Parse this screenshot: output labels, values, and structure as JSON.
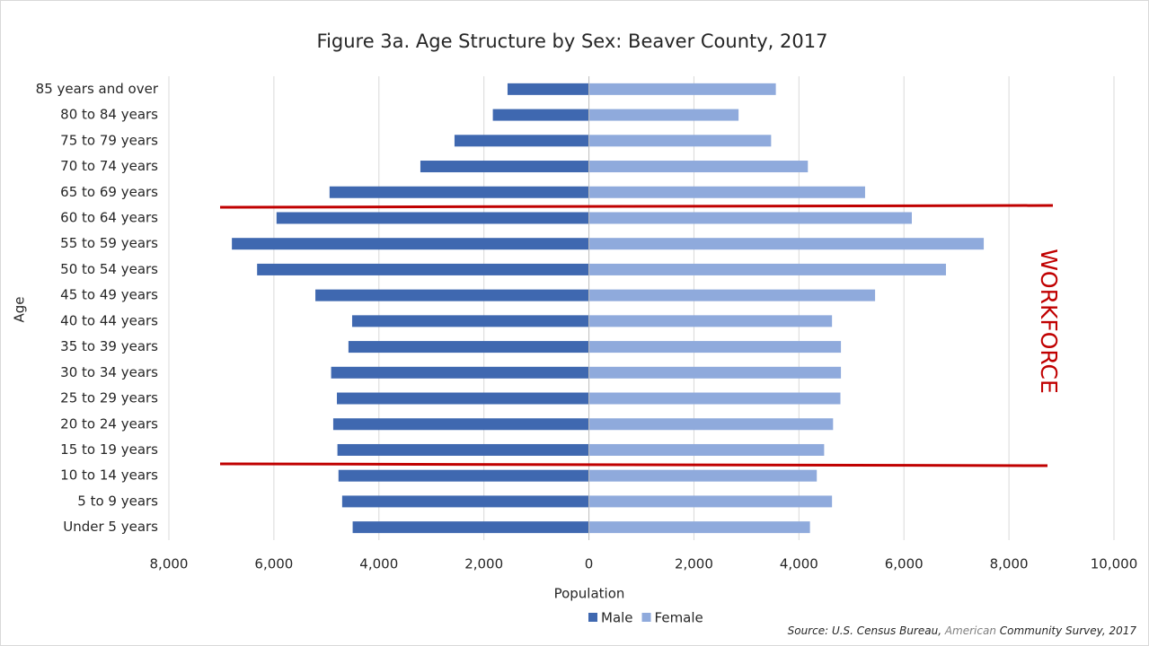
{
  "chart_data": {
    "type": "bar",
    "orientation": "horizontal",
    "title": "Figure 3a. Age Structure by Sex: Beaver County, 2017",
    "x_label": "Population",
    "y_label": "Age",
    "annotation": "WORKFORCE",
    "source": [
      "Source: U.S. Census Bureau, ",
      "American",
      " Community Survey, 2017"
    ],
    "categories": [
      "85 years and over",
      "80 to 84 years",
      "75 to 79 years",
      "70 to 74 years",
      "65 to 69 years",
      "60 to 64 years",
      "55 to 59 years",
      "50 to 54 years",
      "45 to 49 years",
      "40 to 44 years",
      "35 to 39 years",
      "30 to 34 years",
      "25 to 29 years",
      "20 to 24 years",
      "15 to 19 years",
      "10 to 14 years",
      "5 to 9 years",
      "Under 5 years"
    ],
    "series": [
      {
        "name": "Male",
        "color": "#3f68b0",
        "values": [
          -1550,
          -1830,
          -2560,
          -3210,
          -4940,
          -5950,
          -6800,
          -6320,
          -5210,
          -4510,
          -4580,
          -4910,
          -4800,
          -4870,
          -4790,
          -4770,
          -4700,
          -4500
        ]
      },
      {
        "name": "Female",
        "color": "#8faadc",
        "values": [
          3560,
          2850,
          3470,
          4170,
          5260,
          6150,
          7520,
          6800,
          5450,
          4630,
          4800,
          4800,
          4790,
          4650,
          4480,
          4340,
          4630,
          4210
        ]
      }
    ],
    "xlim": [
      -8000,
      10000
    ],
    "xticks": [
      {
        "value": -8000,
        "label": "8,000"
      },
      {
        "value": -6000,
        "label": "6,000"
      },
      {
        "value": -4000,
        "label": "4,000"
      },
      {
        "value": -2000,
        "label": "2,000"
      },
      0,
      {
        "value": 2000,
        "label": "2,000"
      },
      {
        "value": 4000,
        "label": "4,000"
      },
      {
        "value": 6000,
        "label": "6,000"
      },
      {
        "value": 8000,
        "label": "8,000"
      },
      {
        "value": 10000,
        "label": "10,000"
      }
    ],
    "grid": true,
    "legend": "bottom"
  }
}
